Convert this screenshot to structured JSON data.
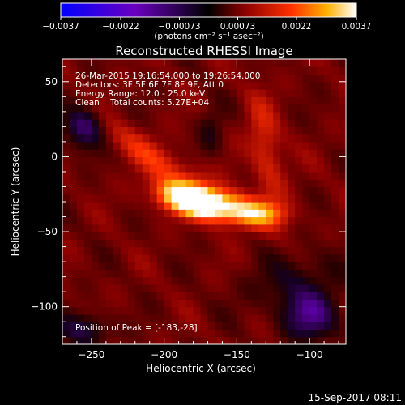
{
  "chart_data": {
    "type": "heatmap",
    "title": "Reconstructed RHESSI Image",
    "xlabel": "Heliocentric X (arcsec)",
    "ylabel": "Heliocentric Y (arcsec)",
    "xlim": [
      -270,
      -75
    ],
    "ylim": [
      -125,
      65
    ],
    "x_ticks": [
      -250,
      -200,
      -150,
      -100
    ],
    "y_ticks": [
      50,
      0,
      -50,
      -100
    ],
    "x_tick_labels": [
      "−250",
      "−200",
      "−150",
      "−100"
    ],
    "y_tick_labels": [
      "50",
      "0",
      "−50",
      "−100"
    ],
    "colorbar": {
      "range": [
        -0.0037,
        0.0037
      ],
      "ticks": [
        -0.0037,
        -0.0022,
        -0.00073,
        0.00073,
        0.0022,
        0.0037
      ],
      "tick_labels": [
        "−0.0037",
        "−0.0022",
        "−0.00073",
        "0.00073",
        "0.0022",
        "0.0037"
      ],
      "units_label": "(photons cm⁻² s⁻¹ asec⁻²)",
      "colormap": [
        "#0000ff",
        "#7a00c8",
        "#000000",
        "#8a0000",
        "#ff3000",
        "#ffb000",
        "#ffffff"
      ]
    },
    "annotations": [
      "26-Mar-2015 19:16:54.000 to 19:26:54.000",
      "Detectors: 3F 5F 6F 7F 8F 9F, Att 0",
      "Energy Range: 12.0 - 25.0 keV",
      "Clean    Total counts: 5.27E+04"
    ],
    "peak_label": "Position of Peak = [-183,-28]",
    "peak": {
      "x": -183,
      "y": -28
    },
    "timestamp": "15-Sep-2017 08:11"
  }
}
